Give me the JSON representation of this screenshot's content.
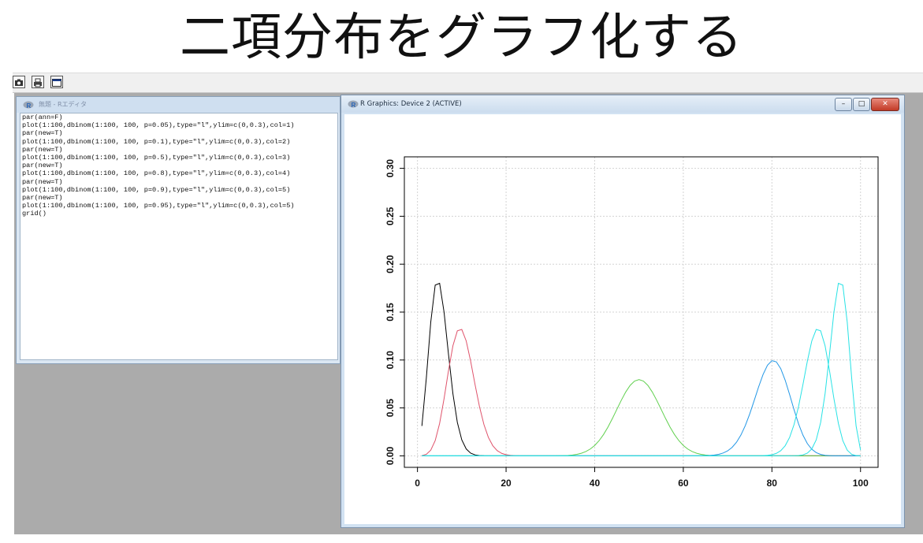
{
  "slide": {
    "title": "二項分布をグラフ化する"
  },
  "toolbar": {
    "buttons": [
      "camera-icon",
      "printer-icon",
      "window-icon"
    ]
  },
  "editor": {
    "title": "無題 - Rエディタ",
    "code": [
      "par(ann=F)",
      "plot(1:100,dbinom(1:100, 100, p=0.05),type=\"l\",ylim=c(0,0.3),col=1)",
      "par(new=T)",
      "plot(1:100,dbinom(1:100, 100, p=0.1),type=\"l\",ylim=c(0,0.3),col=2)",
      "par(new=T)",
      "plot(1:100,dbinom(1:100, 100, p=0.5),type=\"l\",ylim=c(0,0.3),col=3)",
      "par(new=T)",
      "plot(1:100,dbinom(1:100, 100, p=0.8),type=\"l\",ylim=c(0,0.3),col=4)",
      "par(new=T)",
      "plot(1:100,dbinom(1:100, 100, p=0.9),type=\"l\",ylim=c(0,0.3),col=5)",
      "par(new=T)",
      "plot(1:100,dbinom(1:100, 100, p=0.95),type=\"l\",ylim=c(0,0.3),col=5)",
      "grid()"
    ]
  },
  "graphics_window": {
    "title": "R Graphics: Device 2 (ACTIVE)",
    "buttons": {
      "minimize": "–",
      "maximize": "□",
      "close": "✕"
    }
  },
  "chart_data": {
    "type": "line",
    "xlim": [
      0,
      100
    ],
    "ylim": [
      0,
      0.3
    ],
    "x_ticks": [
      0,
      20,
      40,
      60,
      80,
      100
    ],
    "y_ticks": [
      0.0,
      0.05,
      0.1,
      0.15,
      0.2,
      0.25,
      0.3
    ],
    "x_tick_labels": [
      "0",
      "20",
      "40",
      "60",
      "80",
      "100"
    ],
    "y_tick_labels": [
      "0.00",
      "0.05",
      "0.10",
      "0.15",
      "0.20",
      "0.25",
      "0.30"
    ],
    "grid": true,
    "x": "1:100",
    "series": [
      {
        "p": 0.05,
        "color": "#000000",
        "formula": "dbinom(1:100, 100, p=0.05)"
      },
      {
        "p": 0.1,
        "color": "#df536b",
        "formula": "dbinom(1:100, 100, p=0.1)"
      },
      {
        "p": 0.5,
        "color": "#61d04f",
        "formula": "dbinom(1:100, 100, p=0.5)"
      },
      {
        "p": 0.8,
        "color": "#2297e6",
        "formula": "dbinom(1:100, 100, p=0.8)"
      },
      {
        "p": 0.9,
        "color": "#28e2e5",
        "formula": "dbinom(1:100, 100, p=0.9)"
      },
      {
        "p": 0.95,
        "color": "#28e2e5",
        "formula": "dbinom(1:100, 100, p=0.95)"
      }
    ]
  }
}
